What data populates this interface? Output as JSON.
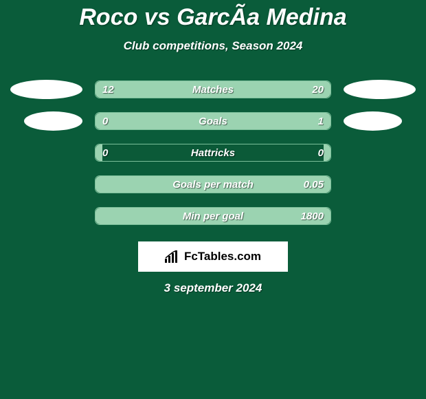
{
  "background_color": "#0a5c3a",
  "title": "Roco vs GarcÃ­a Medina",
  "title_color": "#ffffff",
  "subtitle": "Club competitions, Season 2024",
  "subtitle_color": "#ffffff",
  "flag_left_color": "#ffffff",
  "flag_right_color": "#ffffff",
  "bar_track_color": "#0b5a38",
  "bar_track_border": "#7bbf9a",
  "bar_fill_left": "#9bd3b1",
  "bar_fill_right": "#9bd3b1",
  "logo_box_bg": "#ffffff",
  "logo_box_text": "#000000",
  "logo_text": "FcTables.com",
  "date": "3 september 2024",
  "date_color": "#ffffff",
  "rows": [
    {
      "label": "Matches",
      "left": "12",
      "right": "20",
      "left_pct": 37.5,
      "right_pct": 62.5,
      "show_flags": true
    },
    {
      "label": "Goals",
      "left": "0",
      "right": "1",
      "left_pct": 5,
      "right_pct": 95,
      "show_flags": true
    },
    {
      "label": "Hattricks",
      "left": "0",
      "right": "0",
      "left_pct": 3,
      "right_pct": 3,
      "show_flags": false
    },
    {
      "label": "Goals per match",
      "left": "",
      "right": "0.05",
      "left_pct": 3,
      "right_pct": 97,
      "show_flags": false
    },
    {
      "label": "Min per goal",
      "left": "",
      "right": "1800",
      "left_pct": 3,
      "right_pct": 97,
      "show_flags": false
    }
  ]
}
